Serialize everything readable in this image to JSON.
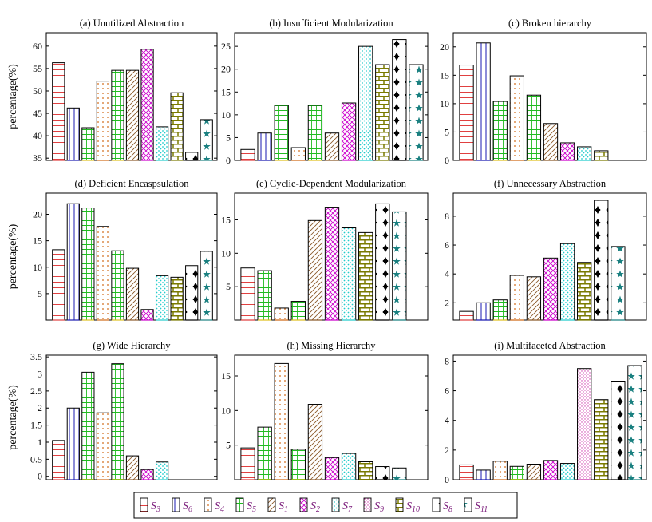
{
  "ylabel": "percentage(%)",
  "colors": {
    "S3": "#e04040",
    "S6": "#1a1ab0",
    "S4": "#d06a18",
    "S5": "#e0c020",
    "S1": "#8b5a2b",
    "S2": "#cc00cc",
    "S7": "#22cccc",
    "S9": "#cc33aa",
    "S10": "#7a7a00",
    "S8": "#000000",
    "S11": "#1a8080"
  },
  "legend": {
    "items": [
      {
        "key": "S3",
        "label": "S",
        "sub": "3"
      },
      {
        "key": "S6",
        "label": "S",
        "sub": "6"
      },
      {
        "key": "S4",
        "label": "S",
        "sub": "4"
      },
      {
        "key": "S5",
        "label": "S",
        "sub": "5"
      },
      {
        "key": "S1",
        "label": "S",
        "sub": "1"
      },
      {
        "key": "S2",
        "label": "S",
        "sub": "2"
      },
      {
        "key": "S7",
        "label": "S",
        "sub": "7"
      },
      {
        "key": "S9",
        "label": "S",
        "sub": "9"
      },
      {
        "key": "S10",
        "label": "S",
        "sub": "10"
      },
      {
        "key": "S8",
        "label": "S",
        "sub": "8"
      },
      {
        "key": "S11",
        "label": "S",
        "sub": "11"
      }
    ]
  },
  "chart_data": [
    {
      "type": "bar",
      "title": "(a) Unutilized Abstraction",
      "ylabel": "percentage(%)",
      "ylim": [
        34.5,
        63
      ],
      "yticks": [
        35,
        40,
        45,
        50,
        55,
        60
      ],
      "bars": [
        {
          "series": "S3",
          "value": 56.3
        },
        {
          "series": "S6",
          "value": 46.2
        },
        {
          "series": "S5",
          "value": 41.8
        },
        {
          "series": "S4",
          "value": 52.2
        },
        {
          "series": "S5",
          "value": 54.6
        },
        {
          "series": "S1",
          "value": 54.6
        },
        {
          "series": "S2",
          "value": 59.3
        },
        {
          "series": "S7",
          "value": 42.0
        },
        {
          "series": "S10",
          "value": 49.6
        },
        {
          "series": "S8",
          "value": 36.3
        },
        {
          "series": "S11",
          "value": 43.6
        }
      ]
    },
    {
      "type": "bar",
      "title": "(b) Insufficient Modularization",
      "ylabel": "",
      "ylim": [
        0,
        28
      ],
      "yticks": [
        0,
        5,
        10,
        15,
        20,
        25
      ],
      "bars": [
        {
          "series": "S3",
          "value": 2.4
        },
        {
          "series": "S6",
          "value": 6.0
        },
        {
          "series": "S5",
          "value": 12.1
        },
        {
          "series": "S4",
          "value": 2.8
        },
        {
          "series": "S5",
          "value": 12.1
        },
        {
          "series": "S1",
          "value": 6.0
        },
        {
          "series": "S2",
          "value": 12.6
        },
        {
          "series": "S7",
          "value": 25.0
        },
        {
          "series": "S10",
          "value": 21.0
        },
        {
          "series": "S8",
          "value": 26.5
        },
        {
          "series": "S11",
          "value": 21.0
        }
      ]
    },
    {
      "type": "bar",
      "title": "(c) Broken hierarchy",
      "ylabel": "",
      "ylim": [
        0,
        22.5
      ],
      "yticks": [
        0,
        5,
        10,
        15,
        20
      ],
      "bars": [
        {
          "series": "S3",
          "value": 16.8
        },
        {
          "series": "S6",
          "value": 20.7
        },
        {
          "series": "S5",
          "value": 10.4
        },
        {
          "series": "S4",
          "value": 14.9
        },
        {
          "series": "S5",
          "value": 11.5
        },
        {
          "series": "S1",
          "value": 6.5
        },
        {
          "series": "S2",
          "value": 3.1
        },
        {
          "series": "S7",
          "value": 2.4
        },
        {
          "series": "S10",
          "value": 1.7
        }
      ]
    },
    {
      "type": "bar",
      "title": "(d) Deficient Encaspsulation",
      "ylabel": "percentage(%)",
      "ylim": [
        0,
        24
      ],
      "yticks": [
        5,
        10,
        15,
        20
      ],
      "bars": [
        {
          "series": "S3",
          "value": 13.3
        },
        {
          "series": "S6",
          "value": 22.0
        },
        {
          "series": "S5",
          "value": 21.2
        },
        {
          "series": "S4",
          "value": 17.7
        },
        {
          "series": "S5",
          "value": 13.1
        },
        {
          "series": "S1",
          "value": 9.8
        },
        {
          "series": "S2",
          "value": 2.0
        },
        {
          "series": "S7",
          "value": 8.4
        },
        {
          "series": "S10",
          "value": 8.1
        },
        {
          "series": "S8",
          "value": 10.3
        },
        {
          "series": "S11",
          "value": 13.0
        }
      ]
    },
    {
      "type": "bar",
      "title": "(e) Cyclic-Dependent Modularization",
      "ylabel": "",
      "ylim": [
        0,
        19
      ],
      "yticks": [
        5,
        10,
        15
      ],
      "bars": [
        {
          "series": "S3",
          "value": 7.8
        },
        {
          "series": "S5",
          "value": 7.4
        },
        {
          "series": "S4",
          "value": 1.8
        },
        {
          "series": "S5",
          "value": 2.8
        },
        {
          "series": "S1",
          "value": 14.9
        },
        {
          "series": "S2",
          "value": 16.9
        },
        {
          "series": "S7",
          "value": 13.8
        },
        {
          "series": "S10",
          "value": 13.1
        },
        {
          "series": "S8",
          "value": 17.4
        },
        {
          "series": "S11",
          "value": 16.2
        }
      ]
    },
    {
      "type": "bar",
      "title": "(f) Unnecessary Abstraction",
      "ylabel": "",
      "ylim": [
        0.8,
        9.6
      ],
      "yticks": [
        2,
        4,
        6,
        8
      ],
      "bars": [
        {
          "series": "S3",
          "value": 1.4
        },
        {
          "series": "S6",
          "value": 2.0
        },
        {
          "series": "S5",
          "value": 2.2
        },
        {
          "series": "S4",
          "value": 3.9
        },
        {
          "series": "S1",
          "value": 3.8
        },
        {
          "series": "S2",
          "value": 5.1
        },
        {
          "series": "S7",
          "value": 6.1
        },
        {
          "series": "S10",
          "value": 4.8
        },
        {
          "series": "S8",
          "value": 9.1
        },
        {
          "series": "S11",
          "value": 5.9
        }
      ]
    },
    {
      "type": "bar",
      "title": "(g) Wide Hierarchy",
      "ylabel": "percentage(%)",
      "ylim": [
        -0.1,
        3.55
      ],
      "yticks": [
        0,
        0.5,
        1,
        1.5,
        2,
        2.5,
        3,
        3.5
      ],
      "bars": [
        {
          "series": "S3",
          "value": 1.05
        },
        {
          "series": "S6",
          "value": 2.0
        },
        {
          "series": "S5",
          "value": 3.05
        },
        {
          "series": "S4",
          "value": 1.86
        },
        {
          "series": "S5",
          "value": 3.3
        },
        {
          "series": "S1",
          "value": 0.6
        },
        {
          "series": "S2",
          "value": 0.2
        },
        {
          "series": "S7",
          "value": 0.42
        }
      ]
    },
    {
      "type": "bar",
      "title": "(h) Missing Hierarchy",
      "ylabel": "",
      "ylim": [
        0,
        18
      ],
      "yticks": [
        5,
        10,
        15
      ],
      "bars": [
        {
          "series": "S3",
          "value": 4.6
        },
        {
          "series": "S5",
          "value": 7.6
        },
        {
          "series": "S4",
          "value": 16.8
        },
        {
          "series": "S5",
          "value": 4.4
        },
        {
          "series": "S1",
          "value": 10.9
        },
        {
          "series": "S2",
          "value": 3.2
        },
        {
          "series": "S7",
          "value": 3.8
        },
        {
          "series": "S10",
          "value": 2.6
        },
        {
          "series": "S8",
          "value": 1.9
        },
        {
          "series": "S11",
          "value": 1.7
        }
      ]
    },
    {
      "type": "bar",
      "title": "(i) Multifaceted Abstraction",
      "ylabel": "",
      "ylim": [
        0,
        8.4
      ],
      "yticks": [
        0,
        2,
        4,
        6,
        8
      ],
      "bars": [
        {
          "series": "S3",
          "value": 1.0
        },
        {
          "series": "S6",
          "value": 0.65
        },
        {
          "series": "S4",
          "value": 1.25
        },
        {
          "series": "S5",
          "value": 0.9
        },
        {
          "series": "S1",
          "value": 1.05
        },
        {
          "series": "S2",
          "value": 1.3
        },
        {
          "series": "S7",
          "value": 1.1
        },
        {
          "series": "S9",
          "value": 7.5
        },
        {
          "series": "S10",
          "value": 5.4
        },
        {
          "series": "S8",
          "value": 6.65
        },
        {
          "series": "S11",
          "value": 7.7
        }
      ]
    }
  ]
}
